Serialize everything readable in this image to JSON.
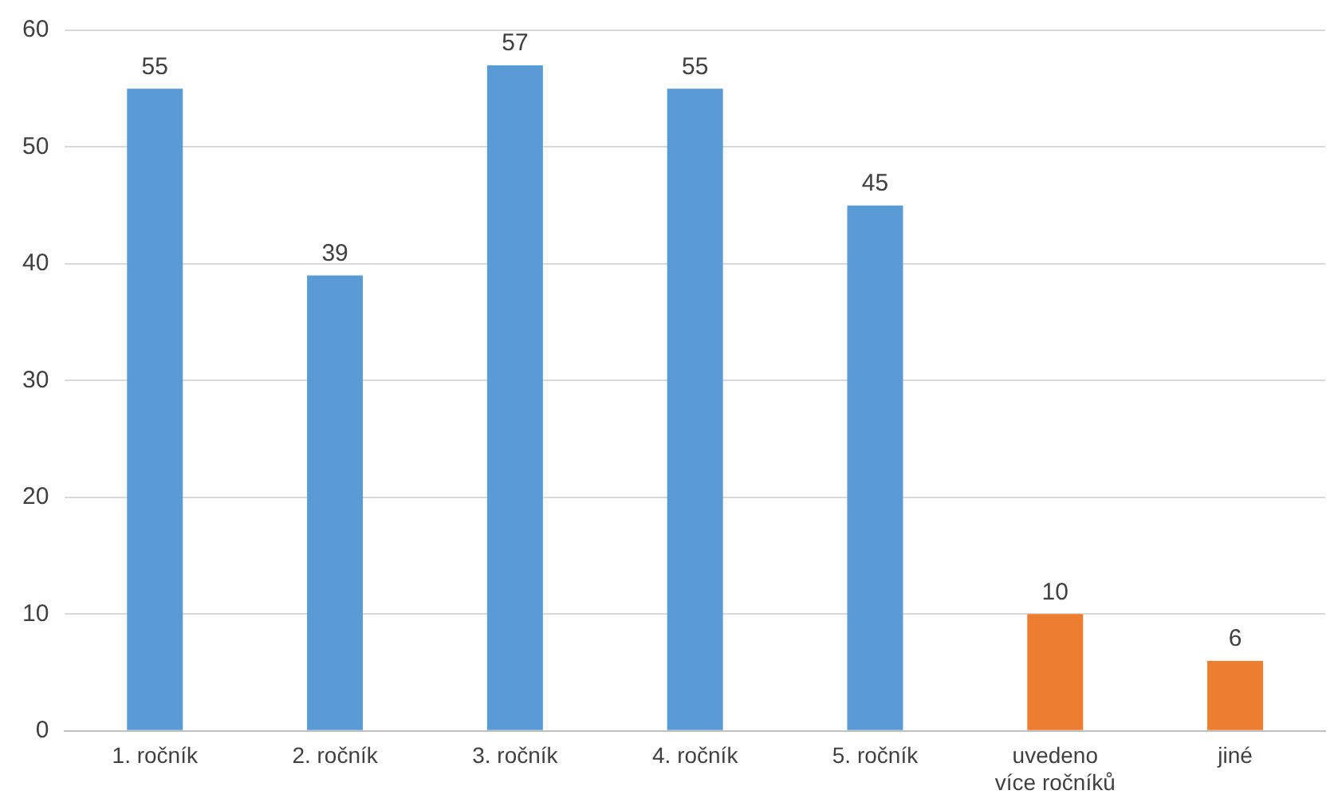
{
  "chart_data": {
    "type": "bar",
    "categories": [
      "1. ročník",
      "2. ročník",
      "3. ročník",
      "4. ročník",
      "5. ročník",
      "uvedeno více ročníků",
      "jiné"
    ],
    "values": [
      55,
      39,
      57,
      55,
      45,
      10,
      6
    ],
    "colors": [
      "#5b9bd5",
      "#5b9bd5",
      "#5b9bd5",
      "#5b9bd5",
      "#5b9bd5",
      "#ed7d31",
      "#ed7d31"
    ],
    "ylim": [
      0,
      60
    ],
    "yticks": [
      0,
      10,
      20,
      30,
      40,
      50,
      60
    ],
    "grid": "y",
    "legend": false,
    "data_labels": true
  }
}
